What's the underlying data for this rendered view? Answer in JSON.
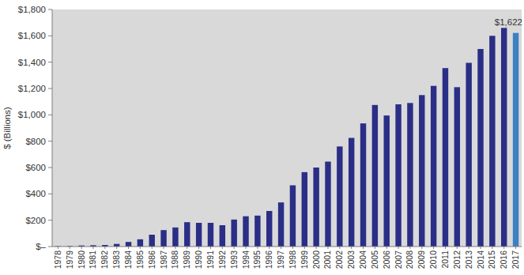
{
  "chart_data": {
    "type": "bar",
    "y_label": "$ (Billions)",
    "categories": [
      "1978",
      "1979",
      "1980",
      "1981",
      "1982",
      "1983",
      "1984",
      "1985",
      "1986",
      "1987",
      "1988",
      "1989",
      "1990",
      "1991",
      "1992",
      "1993",
      "1994",
      "1995",
      "1996",
      "1997",
      "1998",
      "1999",
      "2000",
      "2001",
      "2002",
      "2003",
      "2004",
      "2005",
      "2006",
      "2007",
      "2008",
      "2009",
      "2010",
      "2011",
      "2012",
      "2013",
      "2014",
      "2015",
      "2016",
      "2017"
    ],
    "values": [
      3,
      4,
      8,
      10,
      12,
      20,
      35,
      55,
      90,
      125,
      145,
      185,
      180,
      180,
      162,
      205,
      230,
      235,
      270,
      335,
      465,
      565,
      600,
      645,
      760,
      825,
      935,
      1075,
      995,
      1080,
      1090,
      1150,
      1220,
      1355,
      1210,
      1395,
      1500,
      1600,
      1660,
      1622
    ],
    "colors": [
      "#2b2e86",
      "#2b2e86",
      "#2b2e86",
      "#2b2e86",
      "#2b2e86",
      "#2b2e86",
      "#2b2e86",
      "#2b2e86",
      "#2b2e86",
      "#2b2e86",
      "#2b2e86",
      "#2b2e86",
      "#2b2e86",
      "#2b2e86",
      "#2b2e86",
      "#2b2e86",
      "#2b2e86",
      "#2b2e86",
      "#2b2e86",
      "#2b2e86",
      "#2b2e86",
      "#2b2e86",
      "#2b2e86",
      "#2b2e86",
      "#2b2e86",
      "#2b2e86",
      "#2b2e86",
      "#2b2e86",
      "#2b2e86",
      "#2b2e86",
      "#2b2e86",
      "#2b2e86",
      "#2b2e86",
      "#2b2e86",
      "#2b2e86",
      "#2b2e86",
      "#2b2e86",
      "#2b2e86",
      "#2b2e86",
      "#3b80c2"
    ],
    "ylim": [
      0,
      1800
    ],
    "yticks": [
      {
        "value": 0,
        "label": "$–"
      },
      {
        "value": 200,
        "label": "$200"
      },
      {
        "value": 400,
        "label": "$400"
      },
      {
        "value": 600,
        "label": "$600"
      },
      {
        "value": 800,
        "label": "$800"
      },
      {
        "value": 1000,
        "label": "$1,000"
      },
      {
        "value": 1200,
        "label": "$1,200"
      },
      {
        "value": 1400,
        "label": "$1,400"
      },
      {
        "value": 1600,
        "label": "$1,600"
      },
      {
        "value": 1800,
        "label": "$1,800"
      }
    ],
    "grid": false,
    "annotations": [
      {
        "label": "$1,622",
        "category": "2017",
        "value": 1622
      }
    ]
  }
}
